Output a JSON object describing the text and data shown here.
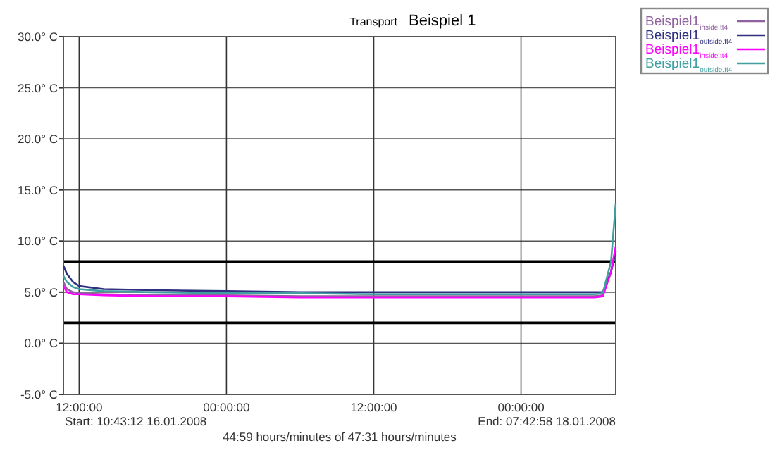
{
  "chart_data": {
    "type": "line",
    "title": "Transport",
    "subtitle": "Beispiel 1",
    "annotations": [
      "Start:  10:43:12 16.01.2008",
      "End:  07:42:58 18.01.2008",
      "44:59 hours/minutes of 47:31 hours/minutes"
    ],
    "x": [
      "2008-01-16T10:43",
      "2008-01-16T11:00",
      "2008-01-16T11:30",
      "2008-01-16T12:00",
      "2008-01-16T14:00",
      "2008-01-16T18:00",
      "2008-01-17T00:00",
      "2008-01-17T06:00",
      "2008-01-17T12:00",
      "2008-01-17T18:00",
      "2008-01-18T00:00",
      "2008-01-18T06:00",
      "2008-01-18T06:40",
      "2008-01-18T07:20",
      "2008-01-18T07:43"
    ],
    "series": [
      {
        "name": "Beispiel1$_{inside.tt4}$",
        "color": "#9060a0",
        "values": [
          6.0,
          5.3,
          5.0,
          4.9,
          4.8,
          4.7,
          4.7,
          4.6,
          4.6,
          4.6,
          4.6,
          4.6,
          4.7,
          7.0,
          9.0
        ]
      },
      {
        "name": "Beispiel1$_{outside.tt4}$",
        "color": "#303080",
        "values": [
          7.6,
          6.8,
          6.0,
          5.6,
          5.3,
          5.2,
          5.1,
          5.0,
          5.0,
          5.0,
          5.0,
          5.0,
          5.0,
          7.0,
          9.0
        ]
      },
      {
        "name": "Beispiel1$_{inside.tt4}$",
        "color": "#ff00ff",
        "values": [
          5.6,
          5.0,
          4.8,
          4.8,
          4.7,
          4.6,
          4.6,
          4.5,
          4.5,
          4.5,
          4.5,
          4.5,
          4.6,
          7.0,
          9.5
        ]
      },
      {
        "name": "Beispiel1$_{outside.tt4}$",
        "color": "#40a0a0",
        "values": [
          6.6,
          6.0,
          5.5,
          5.3,
          5.1,
          5.0,
          4.9,
          4.9,
          4.8,
          4.8,
          4.8,
          4.8,
          4.9,
          8.0,
          13.7
        ]
      }
    ],
    "xlim": [
      "2008-01-16T10:43",
      "2008-01-18T07:43"
    ],
    "xticks": [
      {
        "value": "2008-01-16T12:00",
        "label": "12:00:00"
      },
      {
        "value": "2008-01-17T00:00",
        "label": "00:00:00"
      },
      {
        "value": "2008-01-17T12:00",
        "label": "12:00:00"
      },
      {
        "value": "2008-01-18T00:00",
        "label": "00:00:00"
      }
    ],
    "ylim": [
      -5,
      30
    ],
    "yticks": [
      {
        "value": -5,
        "label": "-5.0° C"
      },
      {
        "value": 0,
        "label": "0.0° C"
      },
      {
        "value": 5,
        "label": "5.0° C"
      },
      {
        "value": 10,
        "label": "10.0° C"
      },
      {
        "value": 15,
        "label": "15.0° C"
      },
      {
        "value": 20,
        "label": "20.0° C"
      },
      {
        "value": 25,
        "label": "25.0° C"
      },
      {
        "value": 30,
        "label": "30.0° C"
      }
    ],
    "ref_lines": [
      {
        "axis": "y",
        "value": 8,
        "color": "#000000"
      },
      {
        "axis": "y",
        "value": 2,
        "color": "#000000"
      }
    ],
    "grid": true,
    "legend": "top right",
    "marker": "none",
    "line_style": "solid"
  }
}
